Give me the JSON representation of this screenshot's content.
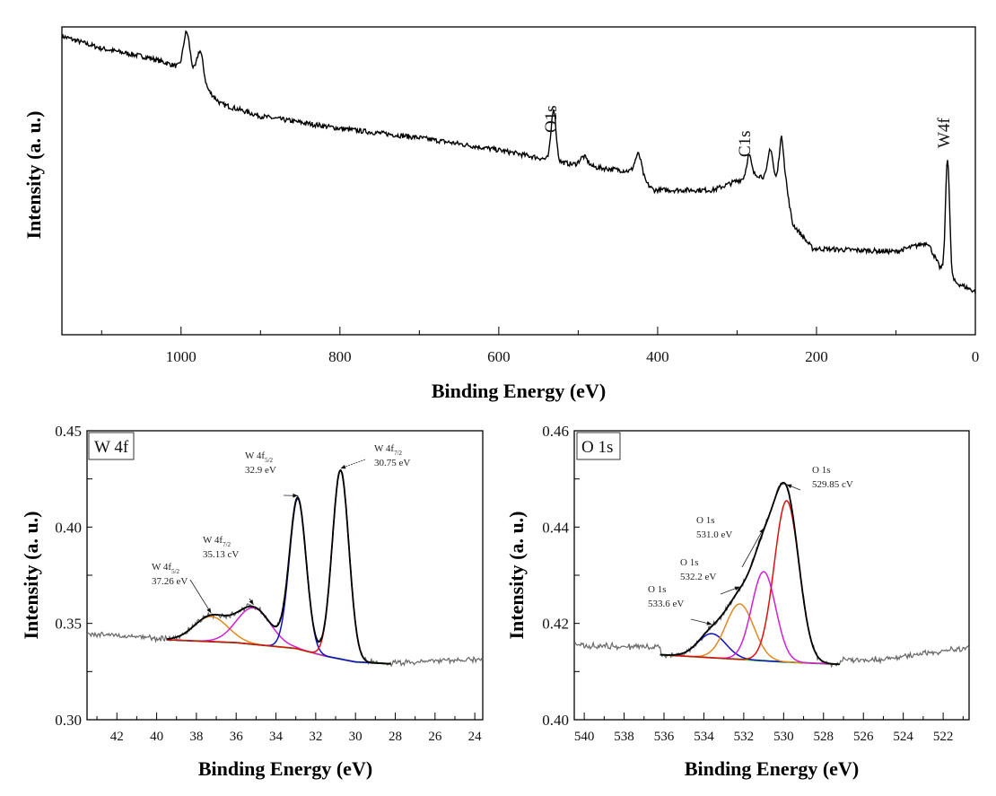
{
  "chart_data": [
    {
      "type": "line",
      "panel": "survey",
      "xlabel": "Binding Energy (eV)",
      "ylabel": "Intensity (a. u.)",
      "xlim": [
        1150,
        0
      ],
      "x_reversed": true,
      "xticks": [
        1000,
        800,
        600,
        400,
        200,
        0
      ],
      "yticks_labeled": false,
      "grid": false,
      "background": [
        [
          1150,
          97
        ],
        [
          1100,
          93
        ],
        [
          1040,
          90
        ],
        [
          990,
          86
        ],
        [
          950,
          75
        ],
        [
          900,
          71
        ],
        [
          800,
          67
        ],
        [
          700,
          64
        ],
        [
          600,
          60
        ],
        [
          540,
          57
        ],
        [
          500,
          55
        ],
        [
          430,
          53
        ],
        [
          405,
          47
        ],
        [
          330,
          47
        ],
        [
          300,
          50
        ],
        [
          275,
          52
        ],
        [
          252,
          50
        ],
        [
          238,
          48
        ],
        [
          230,
          36
        ],
        [
          205,
          28
        ],
        [
          100,
          27
        ],
        [
          60,
          30
        ],
        [
          45,
          22
        ],
        [
          25,
          17
        ],
        [
          0,
          14
        ]
      ],
      "peaks": [
        {
          "center": 993,
          "height": 12,
          "width": 4
        },
        {
          "center": 976,
          "height": 10,
          "width": 4
        },
        {
          "center": 531,
          "height": 17,
          "width": 3
        },
        {
          "center": 493,
          "height": 3,
          "width": 5
        },
        {
          "center": 424,
          "height": 7,
          "width": 4
        },
        {
          "center": 285,
          "height": 7,
          "width": 3
        },
        {
          "center": 258,
          "height": 10,
          "width": 3
        },
        {
          "center": 244,
          "height": 15,
          "width": 3
        },
        {
          "center": 35,
          "height": 38,
          "width": 2.5
        }
      ],
      "annotations": [
        {
          "text": "O1s",
          "x": 531
        },
        {
          "text": "C1s",
          "x": 285
        },
        {
          "text": "W4f",
          "x": 35
        }
      ],
      "color": "#000000"
    },
    {
      "type": "line",
      "panel": "W 4f",
      "title": "W 4f",
      "xlabel": "Binding Energy (eV)",
      "ylabel": "Intensity (a. u.)",
      "xlim": [
        43.5,
        23.6
      ],
      "ylim": [
        0.3,
        0.45
      ],
      "x_reversed": true,
      "xticks": [
        42,
        40,
        38,
        36,
        34,
        32,
        30,
        28,
        26,
        24
      ],
      "yticks": [
        0.3,
        0.35,
        0.4,
        0.45
      ],
      "grid": false,
      "raw_background": [
        [
          43.5,
          0.3445
        ],
        [
          39.5,
          0.342
        ],
        [
          28.2,
          0.3295
        ],
        [
          23.6,
          0.3315
        ]
      ],
      "fit_range": [
        39.5,
        28.2
      ],
      "fit_background": [
        [
          39.5,
          0.3415
        ],
        [
          36,
          0.34
        ],
        [
          33,
          0.337
        ],
        [
          31.5,
          0.333
        ],
        [
          30,
          0.33
        ],
        [
          28.2,
          0.329
        ]
      ],
      "components": [
        {
          "label": "W 4f",
          "sub": "5/2",
          "energy_text": "37.26 eV",
          "center": 37.26,
          "height": 0.013,
          "sigma": 0.85,
          "color": "#e08a1e"
        },
        {
          "label": "W 4f",
          "sub": "7/2",
          "energy_text": "35.13 cV",
          "center": 35.13,
          "height": 0.019,
          "sigma": 0.85,
          "color": "#d020d0"
        },
        {
          "label": "W 4f",
          "sub": "5/2",
          "energy_text": "32.9 eV",
          "center": 32.9,
          "height": 0.078,
          "sigma": 0.42,
          "color": "#1010c0"
        },
        {
          "label": "W 4f",
          "sub": "7/2",
          "energy_text": "30.75 eV",
          "center": 30.75,
          "height": 0.098,
          "sigma": 0.42,
          "color": "#dd1010"
        }
      ],
      "envelope_color": "#000000",
      "background_color": "#33dd33",
      "raw_color": "#666666"
    },
    {
      "type": "line",
      "panel": "O 1s",
      "title": "O 1s",
      "xlabel": "Binding Energy (eV)",
      "ylabel": "Intensity (a. u.)",
      "xlim": [
        540.5,
        520.7
      ],
      "ylim": [
        0.4,
        0.46
      ],
      "x_reversed": true,
      "xticks": [
        540,
        538,
        536,
        534,
        532,
        530,
        528,
        526,
        524,
        522
      ],
      "yticks": [
        0.4,
        0.42,
        0.44,
        0.46
      ],
      "grid": false,
      "raw_background": [
        [
          540.5,
          0.4155
        ],
        [
          536.2,
          0.415
        ],
        [
          527.2,
          0.4125
        ],
        [
          525,
          0.4125
        ],
        [
          520.7,
          0.415
        ]
      ],
      "fit_range": [
        536.2,
        527.2
      ],
      "fit_background": [
        [
          536.2,
          0.4135
        ],
        [
          530,
          0.412
        ],
        [
          527.2,
          0.4115
        ]
      ],
      "components": [
        {
          "label": "O 1s",
          "energy_text": "533.6 eV",
          "center": 533.6,
          "height": 0.005,
          "sigma": 0.7,
          "color": "#1010c0"
        },
        {
          "label": "O 1s",
          "energy_text": "532.2 eV",
          "center": 532.2,
          "height": 0.0115,
          "sigma": 0.7,
          "color": "#e08a1e"
        },
        {
          "label": "O 1s",
          "energy_text": "531.0 eV",
          "center": 531.0,
          "height": 0.0185,
          "sigma": 0.6,
          "color": "#d020d0"
        },
        {
          "label": "O 1s",
          "energy_text": "529.85 cV",
          "center": 529.85,
          "height": 0.0335,
          "sigma": 0.62,
          "color": "#dd1010"
        }
      ],
      "envelope_color": "#000000",
      "background_color": "#33dd33",
      "raw_color": "#666666"
    }
  ]
}
